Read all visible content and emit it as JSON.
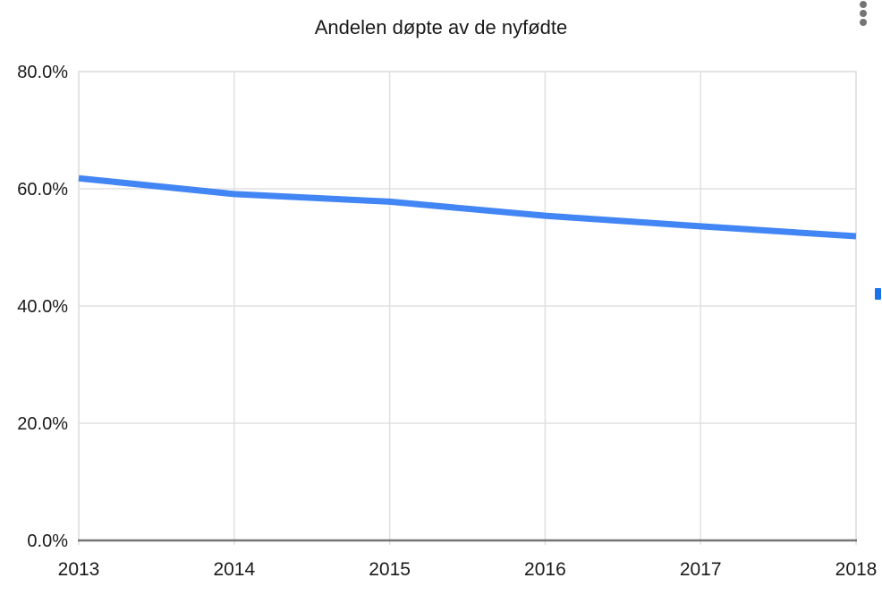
{
  "header": {
    "title": "Andelen døpte av de nyfødte",
    "menu_icon": "kebab-menu-icon"
  },
  "chart_data": {
    "type": "line",
    "title": "Andelen døpte av de nyfødte",
    "categories": [
      "2013",
      "2014",
      "2015",
      "2016",
      "2017",
      "2018"
    ],
    "values": [
      61.8,
      59.1,
      57.8,
      55.4,
      53.6,
      51.9
    ],
    "xlabel": "",
    "ylabel": "",
    "ylim": [
      0,
      80
    ],
    "yticks": [
      0,
      20,
      40,
      60,
      80
    ],
    "ytick_labels": [
      "0.0%",
      "20.0%",
      "40.0%",
      "60.0%",
      "80.0%"
    ],
    "grid": true,
    "legend_position": "none",
    "line_color": "#4285f4",
    "line_width": 7
  },
  "colors": {
    "background": "#ffffff",
    "gridline": "#e0e0e0",
    "plot_border": "#e0e0e0",
    "axis_line": "#757575",
    "text": "#1a1a1a",
    "menu_dots": "#757575",
    "scroll_indicator": "#1a73e8"
  }
}
